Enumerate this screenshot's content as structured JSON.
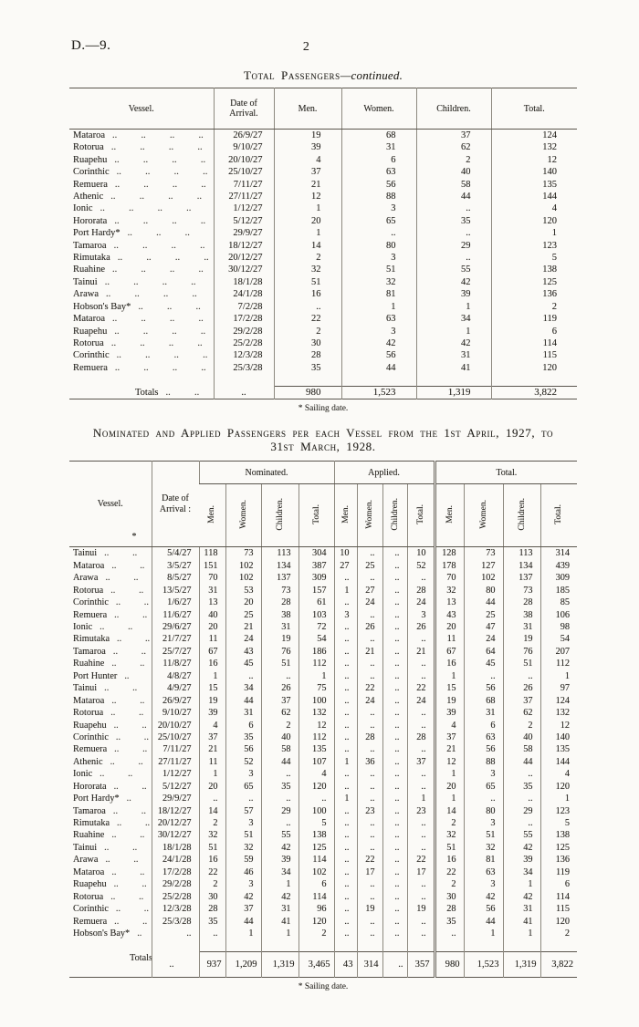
{
  "page": {
    "doc_ref": "D.—9.",
    "page_number": "2"
  },
  "leader_pattern": "..   ..   ..   ..   ..",
  "table1": {
    "title_main": "Total Passengers",
    "title_suffix": "—continued.",
    "headers": [
      "Vessel.",
      "Date of Arrival.",
      "Men.",
      "Women.",
      "Children.",
      "Total."
    ],
    "rows": [
      [
        "Mataroa",
        "26/9/27",
        "19",
        "68",
        "37",
        "124"
      ],
      [
        "Rotorua",
        "9/10/27",
        "39",
        "31",
        "62",
        "132"
      ],
      [
        "Ruapehu",
        "20/10/27",
        "4",
        "6",
        "2",
        "12"
      ],
      [
        "Corinthic",
        "25/10/27",
        "37",
        "63",
        "40",
        "140"
      ],
      [
        "Remuera",
        "7/11/27",
        "21",
        "56",
        "58",
        "135"
      ],
      [
        "Athenic",
        "27/11/27",
        "12",
        "88",
        "44",
        "144"
      ],
      [
        "Ionic",
        "1/12/27",
        "1",
        "3",
        "..",
        "4"
      ],
      [
        "Hororata",
        "5/12/27",
        "20",
        "65",
        "35",
        "120"
      ],
      [
        "Port Hardy*",
        "29/9/27",
        "1",
        "..",
        "..",
        "1"
      ],
      [
        "Tamaroa",
        "18/12/27",
        "14",
        "80",
        "29",
        "123"
      ],
      [
        "Rimutaka",
        "20/12/27",
        "2",
        "3",
        "..",
        "5"
      ],
      [
        "Ruahine",
        "30/12/27",
        "32",
        "51",
        "55",
        "138"
      ],
      [
        "Tainui",
        "18/1/28",
        "51",
        "32",
        "42",
        "125"
      ],
      [
        "Arawa",
        "24/1/28",
        "16",
        "81",
        "39",
        "136"
      ],
      [
        "Hobson's Bay*",
        "7/2/28",
        "..",
        "1",
        "1",
        "2"
      ],
      [
        "Mataroa",
        "17/2/28",
        "22",
        "63",
        "34",
        "119"
      ],
      [
        "Ruapehu",
        "29/2/28",
        "2",
        "3",
        "1",
        "6"
      ],
      [
        "Rotorua",
        "25/2/28",
        "30",
        "42",
        "42",
        "114"
      ],
      [
        "Corinthic",
        "12/3/28",
        "28",
        "56",
        "31",
        "115"
      ],
      [
        "Remuera",
        "25/3/28",
        "35",
        "44",
        "41",
        "120"
      ]
    ],
    "totals_row": [
      "Totals",
      "..",
      "980",
      "1,523",
      "1,319",
      "3,822"
    ],
    "footnote": "* Sailing date."
  },
  "table2": {
    "title_line1": "Nominated and Applied Passengers per each Vessel from the 1st April, 1927, to",
    "title_line2": "31st March, 1928.",
    "header": {
      "vessel": "Vessel.",
      "vessel_note": "*",
      "date": "Date of Arrival :",
      "groups": [
        "Nominated.",
        "Applied.",
        "Total."
      ],
      "sub": [
        "Men.",
        "Women.",
        "Children.",
        "Total."
      ]
    },
    "rows": [
      [
        "Tainui",
        "5/4/27",
        "118",
        "73",
        "113",
        "304",
        "10",
        "..",
        "..",
        "10",
        "128",
        "73",
        "113",
        "314"
      ],
      [
        "Mataroa",
        "3/5/27",
        "151",
        "102",
        "134",
        "387",
        "27",
        "25",
        "..",
        "52",
        "178",
        "127",
        "134",
        "439"
      ],
      [
        "Arawa",
        "8/5/27",
        "70",
        "102",
        "137",
        "309",
        "..",
        "..",
        "..",
        "..",
        "70",
        "102",
        "137",
        "309"
      ],
      [
        "Rotorua",
        "13/5/27",
        "31",
        "53",
        "73",
        "157",
        "1",
        "27",
        "..",
        "28",
        "32",
        "80",
        "73",
        "185"
      ],
      [
        "Corinthic",
        "1/6/27",
        "13",
        "20",
        "28",
        "61",
        "..",
        "24",
        "..",
        "24",
        "13",
        "44",
        "28",
        "85"
      ],
      [
        "Remuera",
        "11/6/27",
        "40",
        "25",
        "38",
        "103",
        "3",
        "..",
        "..",
        "3",
        "43",
        "25",
        "38",
        "106"
      ],
      [
        "Ionic",
        "29/6/27",
        "20",
        "21",
        "31",
        "72",
        "..",
        "26",
        "..",
        "26",
        "20",
        "47",
        "31",
        "98"
      ],
      [
        "Rimutaka",
        "21/7/27",
        "11",
        "24",
        "19",
        "54",
        "..",
        "..",
        "..",
        "..",
        "11",
        "24",
        "19",
        "54"
      ],
      [
        "Tamaroa",
        "25/7/27",
        "67",
        "43",
        "76",
        "186",
        "..",
        "21",
        "..",
        "21",
        "67",
        "64",
        "76",
        "207"
      ],
      [
        "Ruahine",
        "11/8/27",
        "16",
        "45",
        "51",
        "112",
        "..",
        "..",
        "..",
        "..",
        "16",
        "45",
        "51",
        "112"
      ],
      [
        "Port Hunter",
        "4/8/27",
        "1",
        "..",
        "..",
        "1",
        "..",
        "..",
        "..",
        "..",
        "1",
        "..",
        "..",
        "1"
      ],
      [
        "Tainui",
        "4/9/27",
        "15",
        "34",
        "26",
        "75",
        "..",
        "22",
        "..",
        "22",
        "15",
        "56",
        "26",
        "97"
      ],
      [
        "Mataroa",
        "26/9/27",
        "19",
        "44",
        "37",
        "100",
        "..",
        "24",
        "..",
        "24",
        "19",
        "68",
        "37",
        "124"
      ],
      [
        "Rotorua",
        "9/10/27",
        "39",
        "31",
        "62",
        "132",
        "..",
        "..",
        "..",
        "..",
        "39",
        "31",
        "62",
        "132"
      ],
      [
        "Ruapehu",
        "20/10/27",
        "4",
        "6",
        "2",
        "12",
        "..",
        "..",
        "..",
        "..",
        "4",
        "6",
        "2",
        "12"
      ],
      [
        "Corinthic",
        "25/10/27",
        "37",
        "35",
        "40",
        "112",
        "..",
        "28",
        "..",
        "28",
        "37",
        "63",
        "40",
        "140"
      ],
      [
        "Remuera",
        "7/11/27",
        "21",
        "56",
        "58",
        "135",
        "..",
        "..",
        "..",
        "..",
        "21",
        "56",
        "58",
        "135"
      ],
      [
        "Athenic",
        "27/11/27",
        "11",
        "52",
        "44",
        "107",
        "1",
        "36",
        "..",
        "37",
        "12",
        "88",
        "44",
        "144"
      ],
      [
        "Ionic",
        "1/12/27",
        "1",
        "3",
        "..",
        "4",
        "..",
        "..",
        "..",
        "..",
        "1",
        "3",
        "..",
        "4"
      ],
      [
        "Hororata",
        "5/12/27",
        "20",
        "65",
        "35",
        "120",
        "..",
        "..",
        "..",
        "..",
        "20",
        "65",
        "35",
        "120"
      ],
      [
        "Port Hardy*",
        "29/9/27",
        "..",
        "..",
        "..",
        "..",
        "1",
        "..",
        "..",
        "1",
        "1",
        "..",
        "..",
        "1"
      ],
      [
        "Tamaroa",
        "18/12/27",
        "14",
        "57",
        "29",
        "100",
        "..",
        "23",
        "..",
        "23",
        "14",
        "80",
        "29",
        "123"
      ],
      [
        "Rimutaka",
        "20/12/27",
        "2",
        "3",
        "..",
        "5",
        "..",
        "..",
        "..",
        "..",
        "2",
        "3",
        "..",
        "5"
      ],
      [
        "Ruahine",
        "30/12/27",
        "32",
        "51",
        "55",
        "138",
        "..",
        "..",
        "..",
        "..",
        "32",
        "51",
        "55",
        "138"
      ],
      [
        "Tainui",
        "18/1/28",
        "51",
        "32",
        "42",
        "125",
        "..",
        "..",
        "..",
        "..",
        "51",
        "32",
        "42",
        "125"
      ],
      [
        "Arawa",
        "24/1/28",
        "16",
        "59",
        "39",
        "114",
        "..",
        "22",
        "..",
        "22",
        "16",
        "81",
        "39",
        "136"
      ],
      [
        "Mataroa",
        "17/2/28",
        "22",
        "46",
        "34",
        "102",
        "..",
        "17",
        "..",
        "17",
        "22",
        "63",
        "34",
        "119"
      ],
      [
        "Ruapehu",
        "29/2/28",
        "2",
        "3",
        "1",
        "6",
        "..",
        "..",
        "..",
        "..",
        "2",
        "3",
        "1",
        "6"
      ],
      [
        "Rotorua",
        "25/2/28",
        "30",
        "42",
        "42",
        "114",
        "..",
        "..",
        "..",
        "..",
        "30",
        "42",
        "42",
        "114"
      ],
      [
        "Corinthic",
        "12/3/28",
        "28",
        "37",
        "31",
        "96",
        "..",
        "19",
        "..",
        "19",
        "28",
        "56",
        "31",
        "115"
      ],
      [
        "Remuera",
        "25/3/28",
        "35",
        "44",
        "41",
        "120",
        "..",
        "..",
        "..",
        "..",
        "35",
        "44",
        "41",
        "120"
      ],
      [
        "Hobson's Bay*",
        "..",
        "..",
        "1",
        "1",
        "2",
        "..",
        "..",
        "..",
        "..",
        "..",
        "1",
        "1",
        "2"
      ]
    ],
    "totals_row": [
      "Totals",
      "..",
      "937",
      "1,209",
      "1,319",
      "3,465",
      "43",
      "314",
      "..",
      "357",
      "980",
      "1,523",
      "1,319",
      "3,822"
    ],
    "footnote": "* Sailing date."
  }
}
